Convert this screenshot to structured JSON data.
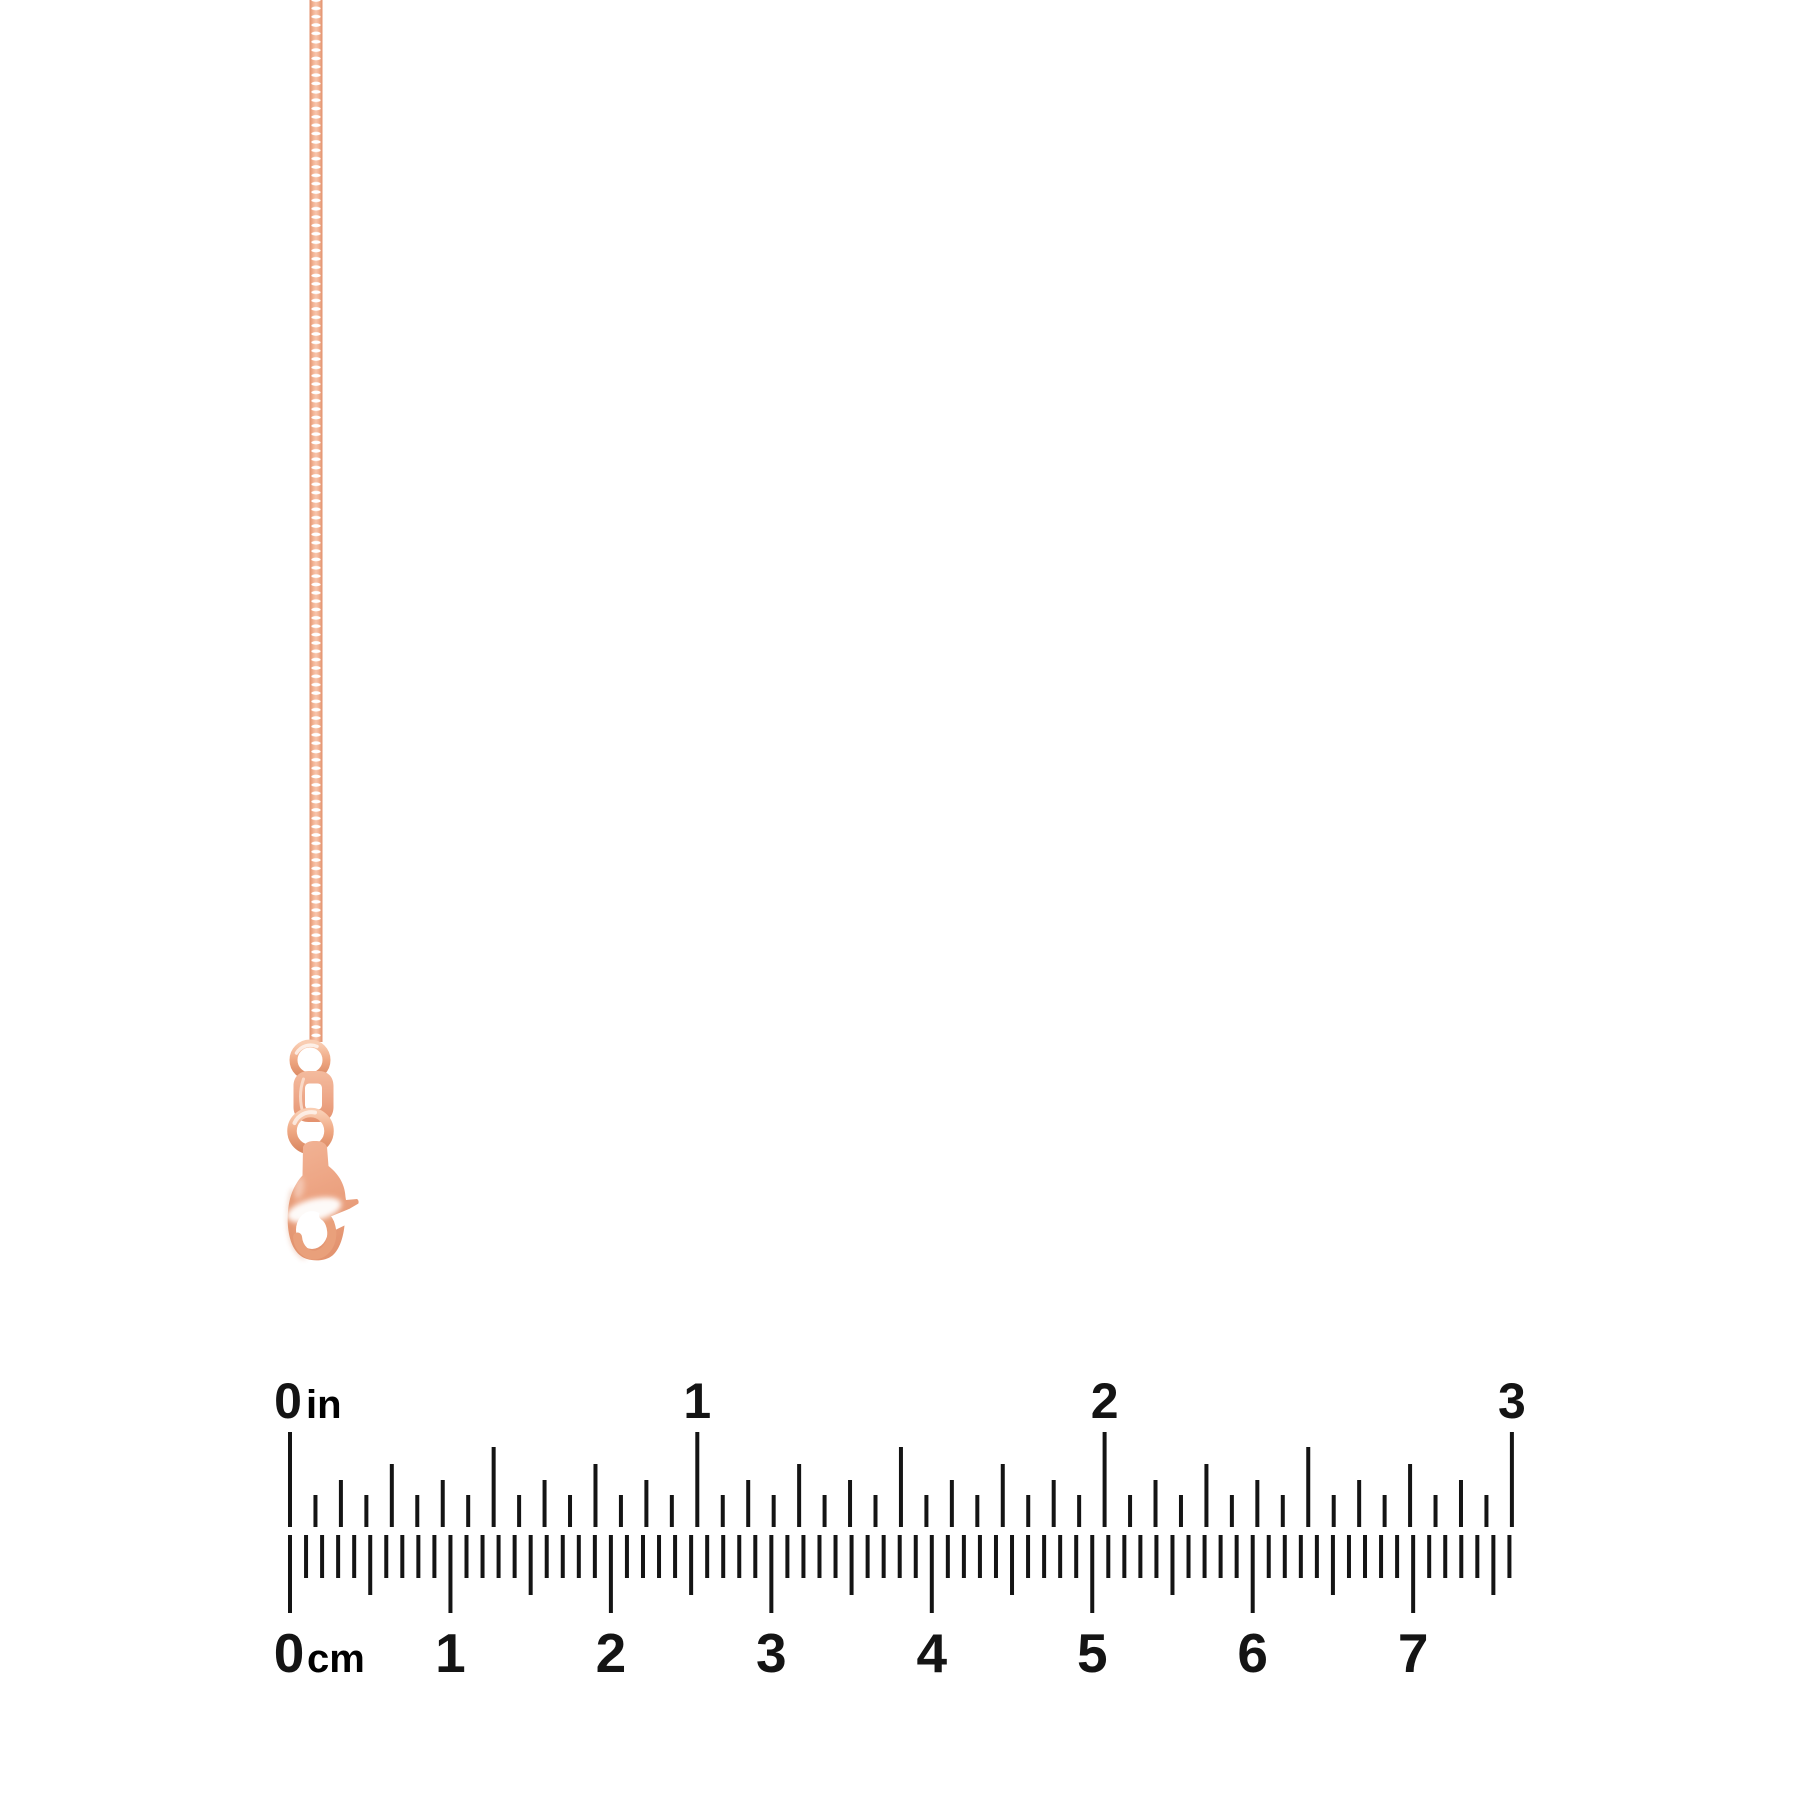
{
  "image": {
    "background": "#ffffff",
    "subject": "Rose gold box chain necklace with lobster clasp, shown with ruler for scale"
  },
  "product": {
    "chain_style": "box-chain",
    "clasp_style": "lobster-clasp",
    "colors": {
      "rose_gold_light": "#fbddca",
      "rose_gold_base": "#f1b093",
      "rose_gold_mid": "#e89c78",
      "rose_gold_dark": "#d98a62",
      "highlight": "#ffffff"
    }
  },
  "ruler": {
    "tick_color": "#141414",
    "label_color": "#141414",
    "top_scale": {
      "unit": "in",
      "labels": [
        "0",
        "1",
        "2",
        "3"
      ],
      "subdivisions_per_unit": 16,
      "total_units": 3
    },
    "bottom_scale": {
      "unit": "cm",
      "labels": [
        "0",
        "1",
        "2",
        "3",
        "4",
        "5",
        "6",
        "7"
      ],
      "subdivisions_per_unit": 10,
      "total_subdivisions": 76,
      "total_units": 7.6
    }
  }
}
